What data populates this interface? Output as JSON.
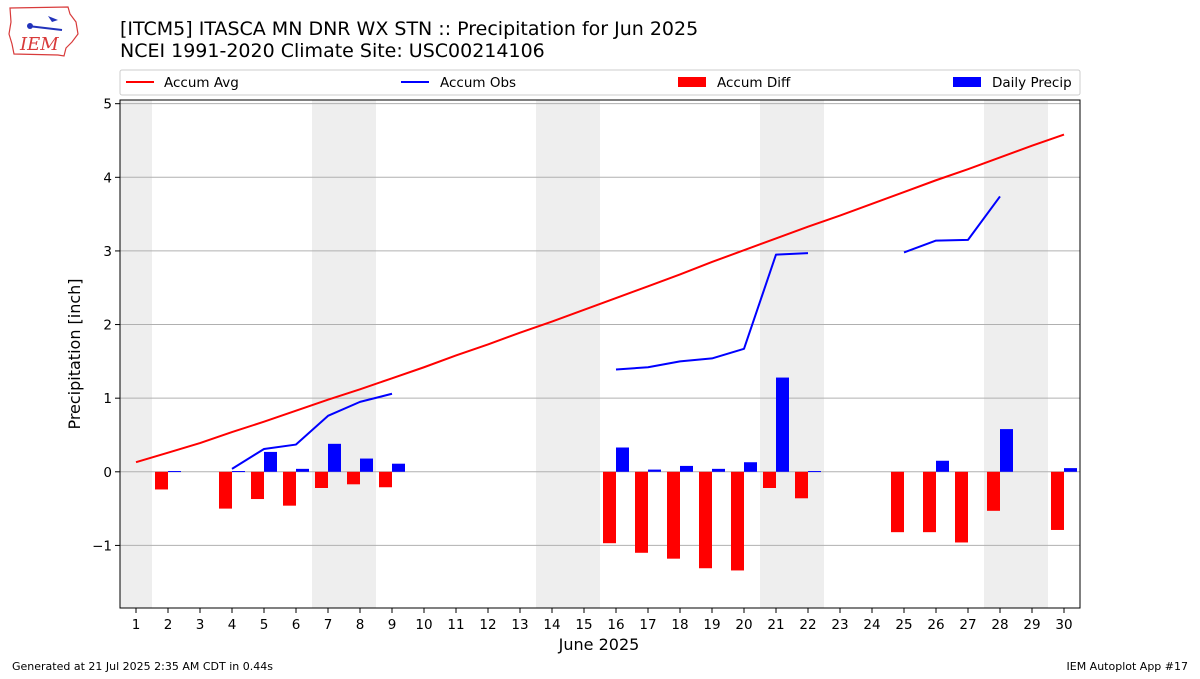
{
  "header": {
    "title_line1": "[ITCM5] ITASCA MN DNR WX STN :: Precipitation for Jun 2025",
    "title_line2": "NCEI 1991-2020 Climate Site: USC00214106",
    "logo_text": "IEM"
  },
  "footer": {
    "left": "Generated at 21 Jul 2025 2:35 AM CDT in 0.44s",
    "right": "IEM Autoplot App #17"
  },
  "colors": {
    "accum_avg": "#ff0000",
    "accum_obs": "#0000ff",
    "accum_diff": "#ff0000",
    "daily_precip": "#0000ff",
    "weekend_band": "#eeeeee",
    "grid": "#b0b0b0"
  },
  "chart_data": {
    "type": "bar",
    "xlabel": "June 2025",
    "ylabel": "Precipitation [inch]",
    "xlim": [
      0.5,
      30.5
    ],
    "ylim": [
      -1.85,
      5.05
    ],
    "yticks": [
      -1,
      0,
      1,
      2,
      3,
      4,
      5
    ],
    "ytick_labels": [
      "−1",
      "0",
      "1",
      "2",
      "3",
      "4",
      "5"
    ],
    "grid": "horizontal",
    "legend_position": "top",
    "days": [
      1,
      2,
      3,
      4,
      5,
      6,
      7,
      8,
      9,
      10,
      11,
      12,
      13,
      14,
      15,
      16,
      17,
      18,
      19,
      20,
      21,
      22,
      23,
      24,
      25,
      26,
      27,
      28,
      29,
      30
    ],
    "weekend_days": [
      1,
      7,
      8,
      14,
      15,
      21,
      22,
      28,
      29
    ],
    "series": [
      {
        "name": "Accum Avg",
        "kind": "line",
        "values": [
          0.13,
          0.26,
          0.39,
          0.54,
          0.68,
          0.83,
          0.98,
          1.12,
          1.27,
          1.42,
          1.58,
          1.73,
          1.89,
          2.04,
          2.2,
          2.36,
          2.52,
          2.68,
          2.85,
          3.01,
          3.17,
          3.33,
          3.48,
          3.64,
          3.8,
          3.96,
          4.11,
          4.27,
          4.43,
          4.58
        ]
      },
      {
        "name": "Accum Obs",
        "kind": "line",
        "values": [
          null,
          null,
          null,
          0.04,
          0.31,
          0.37,
          0.76,
          0.95,
          1.06,
          null,
          null,
          null,
          null,
          null,
          null,
          1.39,
          1.42,
          1.5,
          1.54,
          1.67,
          2.95,
          2.97,
          null,
          null,
          2.98,
          3.14,
          3.15,
          3.74,
          null,
          null
        ]
      },
      {
        "name": "Accum Diff",
        "kind": "bar",
        "values": [
          null,
          -0.24,
          null,
          -0.5,
          -0.37,
          -0.46,
          -0.22,
          -0.17,
          -0.21,
          null,
          null,
          null,
          null,
          null,
          null,
          -0.97,
          -1.1,
          -1.18,
          -1.31,
          -1.34,
          -0.22,
          -0.36,
          null,
          null,
          -0.82,
          -0.82,
          -0.96,
          -0.53,
          null,
          -0.79
        ]
      },
      {
        "name": "Daily Precip",
        "kind": "bar",
        "values": [
          null,
          0.01,
          null,
          0.01,
          0.27,
          0.04,
          0.38,
          0.18,
          0.11,
          null,
          null,
          null,
          null,
          null,
          null,
          0.33,
          0.03,
          0.08,
          0.04,
          0.13,
          1.28,
          0.01,
          null,
          null,
          null,
          0.15,
          null,
          0.58,
          null,
          0.05
        ]
      }
    ]
  }
}
